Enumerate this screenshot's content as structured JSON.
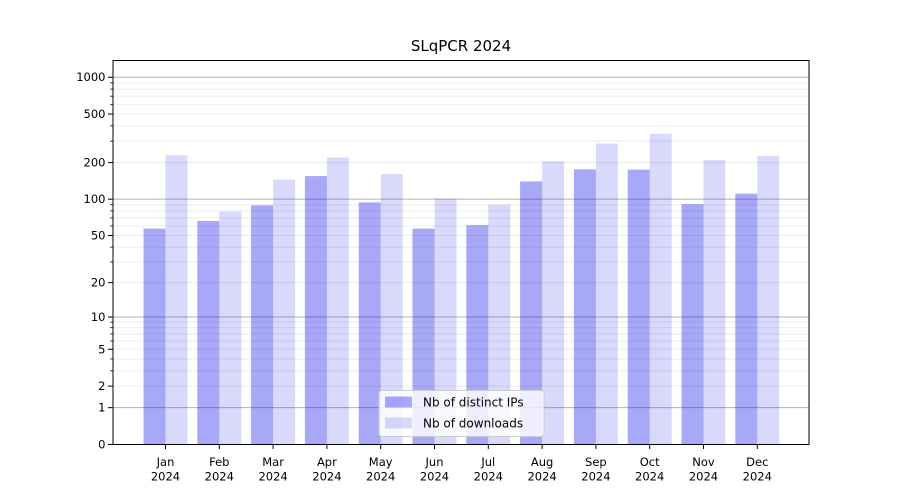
{
  "chart_data": {
    "type": "bar",
    "title": "SLqPCR 2024",
    "categories": [
      "Jan",
      "Feb",
      "Mar",
      "Apr",
      "May",
      "Jun",
      "Jul",
      "Aug",
      "Sep",
      "Oct",
      "Nov",
      "Dec"
    ],
    "category_year": "2024",
    "series": [
      {
        "name": "Nb of distinct IPs",
        "color": "#0000ee",
        "alpha": 0.34,
        "rendered_color": "#a6a6f8",
        "values": [
          57,
          66,
          89,
          155,
          94,
          57,
          61,
          140,
          176,
          175,
          91,
          111
        ]
      },
      {
        "name": "Nb of downloads",
        "color": "#0000ee",
        "alpha": 0.15,
        "rendered_color": "#d9d9fb",
        "values": [
          230,
          79,
          145,
          220,
          161,
          101,
          90,
          205,
          287,
          344,
          210,
          227
        ]
      }
    ],
    "y_scale": "log10(1+y)",
    "y_ticks": [
      0,
      1,
      2,
      5,
      10,
      20,
      50,
      100,
      200,
      500,
      1000
    ],
    "y_major_gridlines": [
      1,
      10,
      100,
      1000
    ],
    "ylim": [
      0,
      1370
    ],
    "xlabel": "",
    "ylabel": "",
    "grid": true,
    "legend": {
      "position": "lower center",
      "entries": [
        "Nb of distinct IPs",
        "Nb of downloads"
      ]
    }
  }
}
